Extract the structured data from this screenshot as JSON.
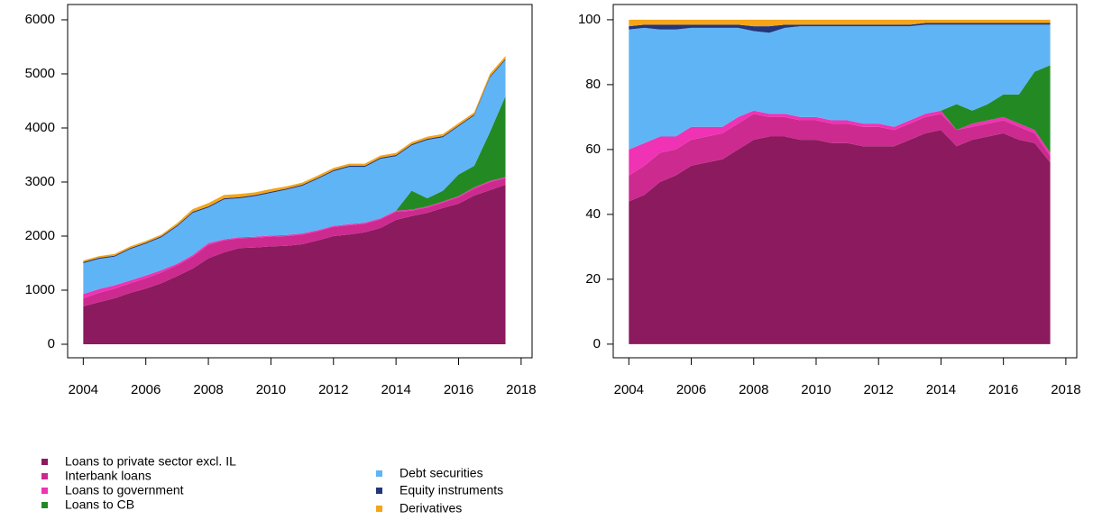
{
  "chart_data": [
    {
      "type": "area",
      "stacked": true,
      "x": [
        2004,
        2004.5,
        2005,
        2005.5,
        2006,
        2006.5,
        2007,
        2007.5,
        2008,
        2008.5,
        2009,
        2009.5,
        2010,
        2010.5,
        2011,
        2011.5,
        2012,
        2012.5,
        2013,
        2013.5,
        2014,
        2014.5,
        2015,
        2015.5,
        2016,
        2016.5,
        2017,
        2017.5
      ],
      "xlim": [
        2003.5,
        2018.35
      ],
      "xticks": [
        2004,
        2006,
        2008,
        2010,
        2012,
        2014,
        2016,
        2018
      ],
      "ylim": [
        -250,
        6283
      ],
      "yticks": [
        0,
        1000,
        2000,
        3000,
        4000,
        5000,
        6000
      ],
      "series": [
        {
          "name": "Loans to private sector excl. IL",
          "color": "#8b1a5e",
          "values": [
            700,
            780,
            850,
            950,
            1030,
            1130,
            1260,
            1400,
            1590,
            1700,
            1780,
            1790,
            1810,
            1820,
            1850,
            1920,
            2000,
            2030,
            2070,
            2150,
            2300,
            2370,
            2430,
            2520,
            2600,
            2750,
            2850,
            2950
          ]
        },
        {
          "name": "Interbank loans",
          "color": "#cc2a8f",
          "values": [
            150,
            170,
            180,
            180,
            190,
            200,
            200,
            220,
            250,
            220,
            180,
            180,
            180,
            180,
            180,
            170,
            170,
            170,
            160,
            160,
            150,
            100,
            100,
            100,
            120,
            130,
            150,
            120
          ]
        },
        {
          "name": "Loans to government",
          "color": "#f032b4",
          "values": [
            80,
            70,
            60,
            50,
            50,
            40,
            30,
            30,
            30,
            20,
            20,
            20,
            20,
            20,
            20,
            20,
            20,
            20,
            20,
            20,
            20,
            20,
            20,
            20,
            20,
            20,
            20,
            20
          ]
        },
        {
          "name": "Loans to CB",
          "color": "#238a23",
          "values": [
            0,
            0,
            0,
            0,
            0,
            0,
            0,
            0,
            0,
            0,
            0,
            0,
            0,
            0,
            0,
            0,
            0,
            0,
            0,
            0,
            0,
            350,
            150,
            200,
            400,
            400,
            900,
            1500
          ]
        },
        {
          "name": "Debt securities",
          "color": "#5fb4f5",
          "values": [
            570,
            560,
            530,
            580,
            590,
            610,
            690,
            780,
            660,
            740,
            720,
            750,
            790,
            840,
            880,
            950,
            1010,
            1060,
            1030,
            1100,
            1010,
            840,
            1080,
            990,
            890,
            930,
            1010,
            670
          ]
        },
        {
          "name": "Equity instruments",
          "color": "#23367a",
          "values": [
            20,
            20,
            20,
            20,
            20,
            20,
            20,
            20,
            20,
            20,
            20,
            20,
            20,
            20,
            20,
            20,
            20,
            20,
            20,
            20,
            20,
            20,
            20,
            20,
            20,
            20,
            20,
            20
          ]
        },
        {
          "name": "Derivatives",
          "color": "#f5a518",
          "values": [
            30,
            30,
            30,
            30,
            30,
            30,
            40,
            50,
            60,
            60,
            60,
            50,
            50,
            40,
            40,
            40,
            40,
            40,
            40,
            40,
            40,
            40,
            40,
            40,
            40,
            40,
            50,
            50
          ]
        }
      ]
    },
    {
      "type": "area",
      "stacked": true,
      "x": [
        2004,
        2004.5,
        2005,
        2005.5,
        2006,
        2006.5,
        2007,
        2007.5,
        2008,
        2008.5,
        2009,
        2009.5,
        2010,
        2010.5,
        2011,
        2011.5,
        2012,
        2012.5,
        2013,
        2013.5,
        2014,
        2014.5,
        2015,
        2015.5,
        2016,
        2016.5,
        2017,
        2017.5
      ],
      "xlim": [
        2003.5,
        2018.35
      ],
      "xticks": [
        2004,
        2006,
        2008,
        2010,
        2012,
        2014,
        2016,
        2018
      ],
      "ylim": [
        -4.2,
        104.7
      ],
      "yticks": [
        0,
        20,
        40,
        60,
        80,
        100
      ],
      "series": [
        {
          "color": "#8b1a5e",
          "values": [
            44,
            46,
            50,
            52,
            55,
            56,
            57,
            60,
            63,
            64,
            64,
            63,
            63,
            62,
            62,
            61,
            61,
            61,
            63,
            65,
            66,
            61,
            63,
            64,
            65,
            63,
            62,
            56
          ]
        },
        {
          "color": "#cc2a8f",
          "values": [
            8,
            9,
            9,
            8,
            8,
            8,
            8,
            8,
            8,
            6,
            6,
            6,
            6,
            6,
            6,
            6,
            6,
            5,
            5,
            5,
            5,
            5,
            4,
            4,
            4,
            4,
            3,
            2
          ]
        },
        {
          "color": "#f032b4",
          "values": [
            8,
            7,
            5,
            4,
            4,
            3,
            2,
            2,
            1,
            1,
            1,
            1,
            1,
            1,
            1,
            1,
            1,
            1,
            1,
            1,
            1,
            0,
            1,
            1,
            1,
            1,
            1,
            1
          ]
        },
        {
          "color": "#238a23",
          "values": [
            0,
            0,
            0,
            0,
            0,
            0,
            0,
            0,
            0,
            0,
            0,
            0,
            0,
            0,
            0,
            0,
            0,
            0,
            0,
            0,
            0,
            8,
            4,
            5,
            7,
            9,
            18,
            27
          ]
        },
        {
          "color": "#5fb4f5",
          "values": [
            37,
            35.5,
            33,
            33,
            30.5,
            30.5,
            30.5,
            27.5,
            24.5,
            25,
            26.5,
            28,
            28,
            29,
            29,
            30,
            30,
            31,
            29,
            27.5,
            26.5,
            24.5,
            26.5,
            24.5,
            21.5,
            21.5,
            14.5,
            12.5
          ]
        },
        {
          "color": "#23367a",
          "values": [
            1,
            1,
            1.5,
            1.5,
            1,
            1,
            1,
            1,
            1.5,
            2,
            1,
            0.5,
            0.5,
            0.5,
            0.5,
            0.5,
            0.5,
            0.5,
            0.5,
            0.5,
            0.5,
            0.5,
            0.5,
            0.5,
            0.5,
            0.5,
            0.5,
            0.5
          ]
        },
        {
          "color": "#f5a518",
          "values": [
            2,
            1.5,
            1.5,
            1.5,
            1.5,
            1.5,
            1.5,
            1.5,
            2,
            2,
            1.5,
            1.5,
            1.5,
            1.5,
            1.5,
            1.5,
            1.5,
            1.5,
            1.5,
            1,
            1,
            1,
            1,
            1,
            1,
            1,
            1,
            1
          ]
        }
      ]
    }
  ]
}
